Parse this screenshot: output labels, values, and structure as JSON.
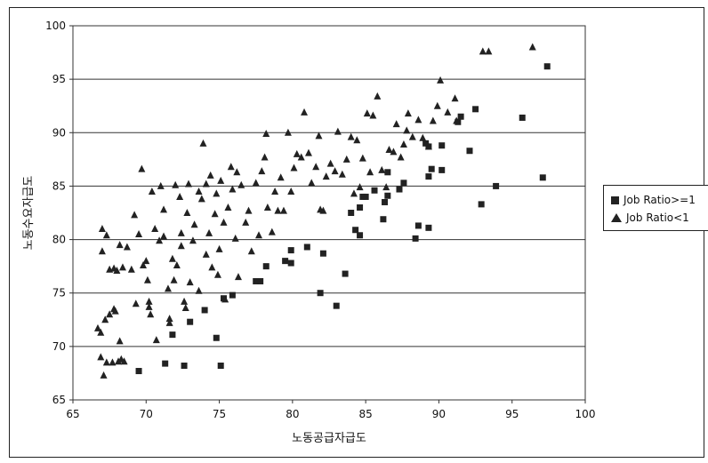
{
  "chart_data": {
    "type": "scatter",
    "xlabel": "노동공급자급도",
    "ylabel": "노동수요자급도",
    "xlim": [
      65,
      100
    ],
    "ylim": [
      65,
      100
    ],
    "xticks": [
      65,
      70,
      75,
      80,
      85,
      90,
      95,
      100
    ],
    "yticks": [
      65,
      70,
      75,
      80,
      85,
      90,
      95,
      100
    ],
    "grid": "horizontal",
    "legend_position": "right",
    "series": [
      {
        "name": "Job Ratio>=1",
        "marker": "square",
        "color": "#222222",
        "points": [
          [
            69.5,
            67.7
          ],
          [
            71.3,
            68.4
          ],
          [
            72.6,
            68.2
          ],
          [
            75.1,
            68.2
          ],
          [
            74.8,
            70.8
          ],
          [
            71.8,
            71.1
          ],
          [
            73.0,
            72.3
          ],
          [
            74.0,
            73.4
          ],
          [
            75.3,
            74.5
          ],
          [
            75.9,
            74.8
          ],
          [
            77.5,
            76.1
          ],
          [
            77.8,
            76.1
          ],
          [
            78.2,
            77.5
          ],
          [
            79.5,
            78.0
          ],
          [
            79.9,
            77.8
          ],
          [
            79.9,
            79.0
          ],
          [
            81.0,
            79.3
          ],
          [
            82.1,
            78.7
          ],
          [
            81.9,
            75.0
          ],
          [
            83.0,
            73.8
          ],
          [
            83.6,
            76.8
          ],
          [
            84.0,
            82.5
          ],
          [
            84.3,
            80.9
          ],
          [
            84.6,
            80.4
          ],
          [
            84.6,
            83.0
          ],
          [
            84.8,
            84.0
          ],
          [
            85.0,
            84.0
          ],
          [
            85.6,
            84.6
          ],
          [
            86.2,
            81.9
          ],
          [
            86.3,
            83.5
          ],
          [
            86.5,
            84.1
          ],
          [
            86.5,
            86.3
          ],
          [
            87.3,
            84.7
          ],
          [
            87.6,
            85.3
          ],
          [
            88.4,
            80.1
          ],
          [
            88.6,
            81.3
          ],
          [
            89.1,
            89.0
          ],
          [
            89.3,
            88.7
          ],
          [
            89.3,
            85.9
          ],
          [
            89.5,
            86.6
          ],
          [
            89.3,
            81.1
          ],
          [
            90.2,
            86.5
          ],
          [
            90.2,
            88.8
          ],
          [
            91.3,
            91.0
          ],
          [
            91.5,
            91.5
          ],
          [
            92.1,
            88.3
          ],
          [
            92.5,
            92.2
          ],
          [
            92.9,
            83.3
          ],
          [
            93.9,
            85.0
          ],
          [
            95.7,
            91.4
          ],
          [
            97.1,
            85.8
          ],
          [
            97.4,
            96.2
          ]
        ]
      },
      {
        "name": "Job Ratio<1",
        "marker": "triangle",
        "color": "#222222",
        "points": [
          [
            66.7,
            71.7
          ],
          [
            66.9,
            71.3
          ],
          [
            66.9,
            69.0
          ],
          [
            67.1,
            67.3
          ],
          [
            67.3,
            68.5
          ],
          [
            67.7,
            68.5
          ],
          [
            68.1,
            68.6
          ],
          [
            68.3,
            68.8
          ],
          [
            68.5,
            68.6
          ],
          [
            67.2,
            72.5
          ],
          [
            67.5,
            73.0
          ],
          [
            67.8,
            73.5
          ],
          [
            67.9,
            73.3
          ],
          [
            68.2,
            70.5
          ],
          [
            67.0,
            78.9
          ],
          [
            67.0,
            81.0
          ],
          [
            67.3,
            80.4
          ],
          [
            67.5,
            77.2
          ],
          [
            67.8,
            77.3
          ],
          [
            68.0,
            77.1
          ],
          [
            68.2,
            79.5
          ],
          [
            68.4,
            77.4
          ],
          [
            68.7,
            79.3
          ],
          [
            69.0,
            77.2
          ],
          [
            69.3,
            74.0
          ],
          [
            69.2,
            82.3
          ],
          [
            69.5,
            80.5
          ],
          [
            69.7,
            86.6
          ],
          [
            69.8,
            77.6
          ],
          [
            70.0,
            78.0
          ],
          [
            70.1,
            76.2
          ],
          [
            70.2,
            73.7
          ],
          [
            70.2,
            74.2
          ],
          [
            70.3,
            73.0
          ],
          [
            70.4,
            84.5
          ],
          [
            70.6,
            81.0
          ],
          [
            70.7,
            70.6
          ],
          [
            70.9,
            79.9
          ],
          [
            71.0,
            85.0
          ],
          [
            71.2,
            82.8
          ],
          [
            71.2,
            80.3
          ],
          [
            71.5,
            75.4
          ],
          [
            71.6,
            72.6
          ],
          [
            71.6,
            72.2
          ],
          [
            71.8,
            78.2
          ],
          [
            71.9,
            76.2
          ],
          [
            72.0,
            85.1
          ],
          [
            72.1,
            77.6
          ],
          [
            72.3,
            84.0
          ],
          [
            72.4,
            80.6
          ],
          [
            72.4,
            79.4
          ],
          [
            72.6,
            74.2
          ],
          [
            72.7,
            73.6
          ],
          [
            72.8,
            82.5
          ],
          [
            72.9,
            85.2
          ],
          [
            73.0,
            76.0
          ],
          [
            73.2,
            79.9
          ],
          [
            73.3,
            81.4
          ],
          [
            73.6,
            84.5
          ],
          [
            73.6,
            75.2
          ],
          [
            73.8,
            83.8
          ],
          [
            73.9,
            89.0
          ],
          [
            74.1,
            85.2
          ],
          [
            74.1,
            78.6
          ],
          [
            74.3,
            80.6
          ],
          [
            74.4,
            86.0
          ],
          [
            74.5,
            77.4
          ],
          [
            74.7,
            82.4
          ],
          [
            74.8,
            84.3
          ],
          [
            74.9,
            76.7
          ],
          [
            75.0,
            79.1
          ],
          [
            75.1,
            85.5
          ],
          [
            75.3,
            81.6
          ],
          [
            75.4,
            74.4
          ],
          [
            75.6,
            83.0
          ],
          [
            75.8,
            86.8
          ],
          [
            75.9,
            84.7
          ],
          [
            76.1,
            80.1
          ],
          [
            76.2,
            86.3
          ],
          [
            76.3,
            76.5
          ],
          [
            76.5,
            85.1
          ],
          [
            76.8,
            81.6
          ],
          [
            77.0,
            82.7
          ],
          [
            77.2,
            78.9
          ],
          [
            77.5,
            85.3
          ],
          [
            77.7,
            80.4
          ],
          [
            77.9,
            86.4
          ],
          [
            78.1,
            87.7
          ],
          [
            78.2,
            89.9
          ],
          [
            78.3,
            83.0
          ],
          [
            78.6,
            80.7
          ],
          [
            78.8,
            84.5
          ],
          [
            79.0,
            82.7
          ],
          [
            79.2,
            85.8
          ],
          [
            79.4,
            82.7
          ],
          [
            79.7,
            90.0
          ],
          [
            79.9,
            84.5
          ],
          [
            80.1,
            86.7
          ],
          [
            80.3,
            88.0
          ],
          [
            80.6,
            87.7
          ],
          [
            80.8,
            91.9
          ],
          [
            81.1,
            88.1
          ],
          [
            81.3,
            85.3
          ],
          [
            81.6,
            86.8
          ],
          [
            81.8,
            89.7
          ],
          [
            81.9,
            82.8
          ],
          [
            82.1,
            82.7
          ],
          [
            82.3,
            85.9
          ],
          [
            82.6,
            87.1
          ],
          [
            82.9,
            86.4
          ],
          [
            83.1,
            90.1
          ],
          [
            83.4,
            86.1
          ],
          [
            83.7,
            87.5
          ],
          [
            84.0,
            89.6
          ],
          [
            84.2,
            84.3
          ],
          [
            84.4,
            89.3
          ],
          [
            84.6,
            84.9
          ],
          [
            84.8,
            87.6
          ],
          [
            85.1,
            91.8
          ],
          [
            85.3,
            86.3
          ],
          [
            85.5,
            91.6
          ],
          [
            85.8,
            93.4
          ],
          [
            86.1,
            86.5
          ],
          [
            86.4,
            84.9
          ],
          [
            86.6,
            88.4
          ],
          [
            86.9,
            88.2
          ],
          [
            87.1,
            90.8
          ],
          [
            87.4,
            87.7
          ],
          [
            87.6,
            88.9
          ],
          [
            87.8,
            90.2
          ],
          [
            87.9,
            91.8
          ],
          [
            88.2,
            89.6
          ],
          [
            88.6,
            91.2
          ],
          [
            88.9,
            89.5
          ],
          [
            89.3,
            88.7
          ],
          [
            89.6,
            91.1
          ],
          [
            89.9,
            92.5
          ],
          [
            90.1,
            94.9
          ],
          [
            90.6,
            91.9
          ],
          [
            91.1,
            93.2
          ],
          [
            91.2,
            91.1
          ],
          [
            93.0,
            97.6
          ],
          [
            93.4,
            97.6
          ],
          [
            96.4,
            98.0
          ]
        ]
      }
    ]
  }
}
